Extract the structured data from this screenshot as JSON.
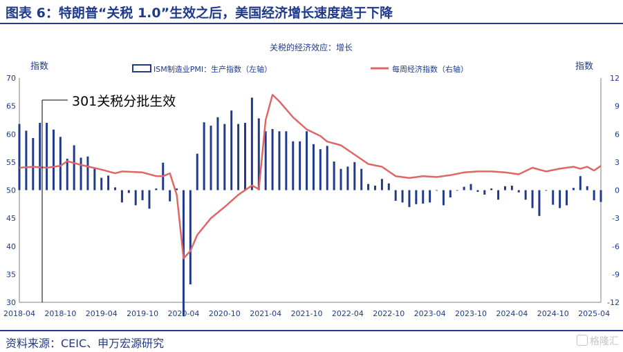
{
  "header": {
    "title": "图表 6：特朗普“关税 1.0”生效之后，美国经济增长速度趋于下降"
  },
  "footer": {
    "source": "资料来源：CEIC、申万宏源研究",
    "watermark": "格隆汇"
  },
  "colors": {
    "bar": "#1f3a8a",
    "line": "#e06666",
    "axis_text": "#1f3a8a",
    "title": "#1f3a8a"
  },
  "chart_data": {
    "type": "bar+line",
    "title": "关税的经济效应：增长",
    "ylabel_left": "指数",
    "ylabel_right": "指数",
    "annotation": "301关税分批生效",
    "ylim_left": [
      30,
      70
    ],
    "ylim_right": [
      -12,
      12
    ],
    "yticks_left": [
      "70",
      "65",
      "60",
      "55",
      "50",
      "45",
      "40",
      "35",
      "30"
    ],
    "yticks_right": [
      "12",
      "9",
      "6",
      "3",
      "0",
      "-3",
      "-6",
      "-9",
      "-12"
    ],
    "xticks": [
      "2018-04",
      "2018-10",
      "2019-04",
      "2019-10",
      "2020-04",
      "2020-10",
      "2021-04",
      "2021-10",
      "2022-04",
      "2022-10",
      "2023-04",
      "2023-10",
      "2024-04",
      "2024-10",
      "2025-04"
    ],
    "legend": [
      "ISM制造业PMI：生产指数（左轴）",
      "每周经济指数（右轴）"
    ],
    "legend_position": "top",
    "grid": false,
    "bar_series": {
      "name": "ISM制造业PMI：生产指数（左轴）",
      "start": "2018-04",
      "values": [
        61.8,
        60.6,
        59.3,
        62.0,
        62.0,
        60.8,
        59.5,
        55.6,
        58.0,
        55.8,
        56.0,
        53.8,
        52.2,
        52.6,
        50.5,
        47.8,
        49.5,
        47.3,
        48.2,
        46.7,
        50.3,
        54.9,
        48.0,
        50.3,
        27.5,
        33.2,
        56.5,
        62.1,
        61.5,
        63.0,
        61.8,
        64.2,
        61.8,
        62.0,
        66.5,
        62.8,
        60.5,
        60.9,
        60.5,
        60.5,
        58.7,
        58.7,
        60.5,
        58.2,
        57.3,
        57.9,
        55.1,
        53.8,
        54.2,
        55.0,
        53.8,
        51.1,
        50.8,
        52.0,
        51.2,
        48.1,
        47.8,
        47.0,
        47.5,
        47.6,
        47.8,
        50.0,
        47.3,
        48.7,
        50.0,
        50.6,
        51.1,
        49.7,
        49.2,
        50.3,
        48.3,
        50.7,
        50.8,
        49.6,
        48.3,
        46.8,
        45.4,
        49.9,
        47.4,
        46.8,
        47.3,
        50.4,
        52.5,
        50.7,
        48.2,
        47.9
      ]
    },
    "line_series": {
      "name": "每周经济指数（右轴）",
      "points": [
        [
          "2018-04",
          2.4
        ],
        [
          "2018-06",
          2.5
        ],
        [
          "2018-08",
          2.4
        ],
        [
          "2018-10",
          2.6
        ],
        [
          "2018-11",
          3.1
        ],
        [
          "2019-01",
          2.7
        ],
        [
          "2019-04",
          2.2
        ],
        [
          "2019-06",
          1.8
        ],
        [
          "2019-07",
          2.0
        ],
        [
          "2019-10",
          1.9
        ],
        [
          "2019-12",
          1.5
        ],
        [
          "2020-01",
          1.5
        ],
        [
          "2020-02",
          1.8
        ],
        [
          "2020-03",
          -0.5
        ],
        [
          "2020-04",
          -7.3
        ],
        [
          "2020-05",
          -6.5
        ],
        [
          "2020-06",
          -4.8
        ],
        [
          "2020-08",
          -3.0
        ],
        [
          "2020-10",
          -1.8
        ],
        [
          "2020-12",
          -0.5
        ],
        [
          "2021-02",
          0.5
        ],
        [
          "2021-03",
          0.1
        ],
        [
          "2021-04",
          7.5
        ],
        [
          "2021-05",
          10.2
        ],
        [
          "2021-06",
          9.5
        ],
        [
          "2021-08",
          7.8
        ],
        [
          "2021-10",
          6.5
        ],
        [
          "2021-12",
          5.8
        ],
        [
          "2022-01",
          5.2
        ],
        [
          "2022-03",
          4.8
        ],
        [
          "2022-05",
          3.8
        ],
        [
          "2022-07",
          2.8
        ],
        [
          "2022-09",
          2.5
        ],
        [
          "2022-11",
          1.5
        ],
        [
          "2023-01",
          1.3
        ],
        [
          "2023-03",
          1.5
        ],
        [
          "2023-05",
          1.4
        ],
        [
          "2023-07",
          1.6
        ],
        [
          "2023-09",
          1.9
        ],
        [
          "2023-11",
          2.0
        ],
        [
          "2024-01",
          2.0
        ],
        [
          "2024-03",
          1.9
        ],
        [
          "2024-05",
          1.7
        ],
        [
          "2024-07",
          2.4
        ],
        [
          "2024-09",
          2.0
        ],
        [
          "2024-11",
          2.3
        ],
        [
          "2025-01",
          2.5
        ],
        [
          "2025-02",
          2.3
        ],
        [
          "2025-03",
          2.5
        ],
        [
          "2025-04",
          2.1
        ],
        [
          "2025-05",
          2.6
        ]
      ]
    }
  }
}
